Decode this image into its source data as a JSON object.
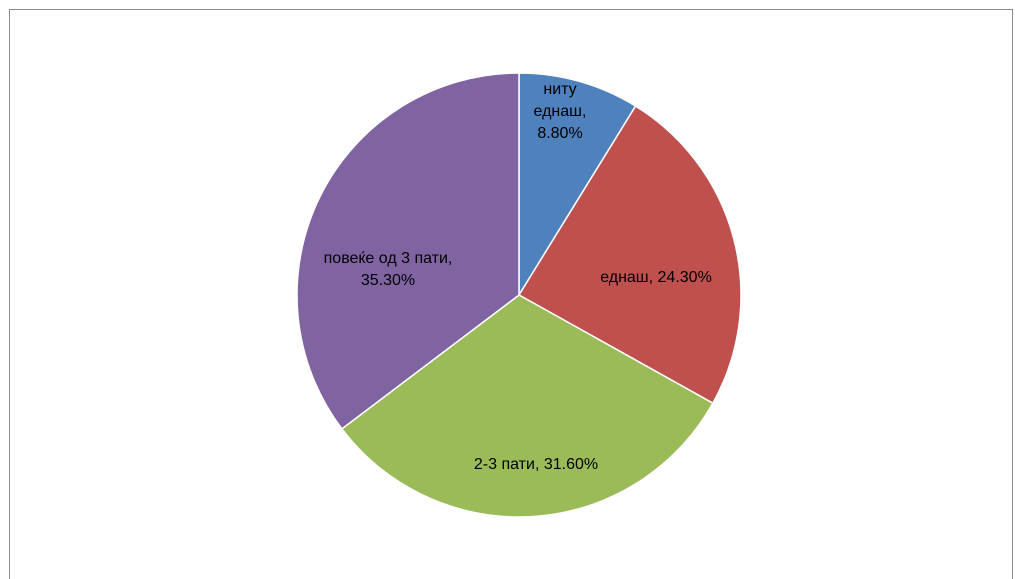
{
  "chart_data": {
    "type": "pie",
    "slices": [
      {
        "name": "ниту еднаш",
        "value": 8.8,
        "label_lines": [
          "ниту",
          "еднаш,",
          "8.80%"
        ],
        "color": "#4F81BD"
      },
      {
        "name": "еднаш",
        "value": 24.3,
        "label_lines": [
          "еднаш, 24.30%"
        ],
        "color": "#C0504D"
      },
      {
        "name": "2-3 пати",
        "value": 31.6,
        "label_lines": [
          "2-3 пати, 31.60%"
        ],
        "color": "#9BBB59"
      },
      {
        "name": "повеќе од 3 пати",
        "value": 35.3,
        "label_lines": [
          "повеќе од 3 пати,",
          "35.30%"
        ],
        "color": "#8064A2"
      }
    ],
    "start": "12 o'clock",
    "direction": "clockwise",
    "legend": "none"
  }
}
